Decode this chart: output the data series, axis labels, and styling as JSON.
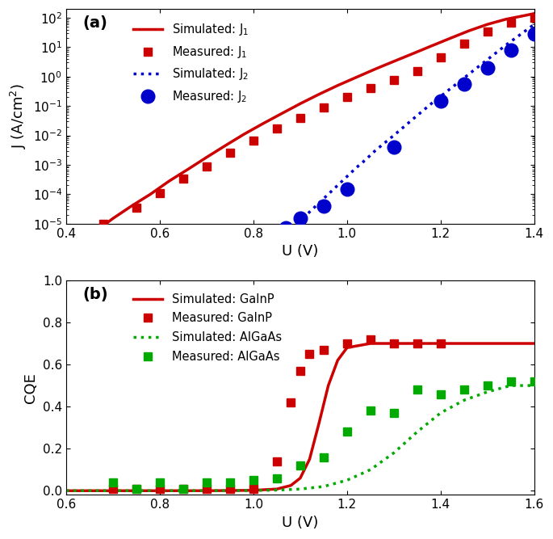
{
  "panel_a": {
    "title": "(a)",
    "xlabel": "U (V)",
    "ylabel": "J (A/cm²)",
    "xlim": [
      0.4,
      1.4
    ],
    "ylim": [
      1e-05,
      200
    ],
    "J1_sim_x": [
      0.43,
      0.46,
      0.5,
      0.54,
      0.58,
      0.62,
      0.66,
      0.7,
      0.74,
      0.78,
      0.82,
      0.86,
      0.9,
      0.94,
      0.98,
      1.02,
      1.06,
      1.1,
      1.14,
      1.18,
      1.22,
      1.26,
      1.3,
      1.34,
      1.38,
      1.4
    ],
    "J1_sim_y": [
      2e-06,
      5e-06,
      1.5e-05,
      4e-05,
      0.0001,
      0.00028,
      0.0007,
      0.0018,
      0.0045,
      0.011,
      0.025,
      0.055,
      0.12,
      0.25,
      0.5,
      0.95,
      1.8,
      3.3,
      6.0,
      11,
      20,
      36,
      60,
      90,
      120,
      140
    ],
    "J1_meas_x": [
      0.48,
      0.55,
      0.6,
      0.65,
      0.7,
      0.75,
      0.8,
      0.85,
      0.9,
      0.95,
      1.0,
      1.05,
      1.1,
      1.15,
      1.2,
      1.25,
      1.3,
      1.35,
      1.4
    ],
    "J1_meas_y": [
      1e-05,
      3.5e-05,
      0.00011,
      0.00035,
      0.0009,
      0.0025,
      0.0065,
      0.017,
      0.04,
      0.09,
      0.2,
      0.4,
      0.75,
      1.5,
      4.5,
      13,
      35,
      70,
      100
    ],
    "J2_sim_x": [
      0.86,
      0.88,
      0.9,
      0.92,
      0.94,
      0.96,
      0.98,
      1.0,
      1.02,
      1.04,
      1.06,
      1.08,
      1.1,
      1.14,
      1.18,
      1.22,
      1.26,
      1.3,
      1.34,
      1.38,
      1.4
    ],
    "J2_sim_y": [
      3e-06,
      6e-06,
      1.2e-05,
      2.5e-05,
      5e-05,
      0.0001,
      0.0002,
      0.0004,
      0.0008,
      0.0015,
      0.003,
      0.0055,
      0.01,
      0.035,
      0.12,
      0.38,
      1.2,
      3.8,
      12,
      35,
      60
    ],
    "J2_meas_x": [
      0.87,
      0.9,
      0.95,
      1.0,
      1.1,
      1.2,
      1.25,
      1.3,
      1.35,
      1.4
    ],
    "J2_meas_y": [
      7e-06,
      1.5e-05,
      4e-05,
      0.00015,
      0.004,
      0.15,
      0.55,
      2.0,
      8.0,
      28
    ],
    "color_J1": "#cc0000",
    "color_J2": "#0000cc",
    "lw": 2.5
  },
  "panel_b": {
    "title": "(b)",
    "xlabel": "U (V)",
    "ylabel": "CQE",
    "xlim": [
      0.6,
      1.6
    ],
    "ylim": [
      -0.02,
      1.0
    ],
    "GaInP_sim_x": [
      0.6,
      0.7,
      0.8,
      0.9,
      1.0,
      1.05,
      1.08,
      1.1,
      1.12,
      1.14,
      1.16,
      1.18,
      1.2,
      1.25,
      1.3,
      1.35,
      1.4,
      1.5,
      1.6
    ],
    "GaInP_sim_y": [
      0.0,
      0.0,
      0.0,
      0.0,
      0.002,
      0.008,
      0.025,
      0.06,
      0.15,
      0.32,
      0.5,
      0.62,
      0.68,
      0.7,
      0.7,
      0.7,
      0.7,
      0.7,
      0.7
    ],
    "GaInP_meas_x": [
      0.7,
      0.75,
      0.8,
      0.85,
      0.9,
      0.95,
      1.0,
      1.05,
      1.08,
      1.1,
      1.12,
      1.15,
      1.2,
      1.25,
      1.3,
      1.35,
      1.4
    ],
    "GaInP_meas_y": [
      0.01,
      0.01,
      0.01,
      0.01,
      0.01,
      0.01,
      0.01,
      0.14,
      0.42,
      0.57,
      0.65,
      0.67,
      0.7,
      0.72,
      0.7,
      0.7,
      0.7
    ],
    "AlGaAs_sim_x": [
      0.6,
      0.7,
      0.8,
      0.9,
      1.0,
      1.05,
      1.1,
      1.15,
      1.2,
      1.25,
      1.3,
      1.35,
      1.4,
      1.45,
      1.5,
      1.55,
      1.6
    ],
    "AlGaAs_sim_y": [
      0.0,
      0.0,
      0.0,
      0.0,
      0.001,
      0.003,
      0.008,
      0.02,
      0.05,
      0.1,
      0.18,
      0.28,
      0.37,
      0.43,
      0.47,
      0.5,
      0.5
    ],
    "AlGaAs_meas_x": [
      0.7,
      0.75,
      0.8,
      0.85,
      0.9,
      0.95,
      1.0,
      1.05,
      1.1,
      1.15,
      1.2,
      1.25,
      1.3,
      1.35,
      1.4,
      1.45,
      1.5,
      1.55,
      1.6
    ],
    "AlGaAs_meas_y": [
      0.04,
      0.01,
      0.04,
      0.01,
      0.04,
      0.04,
      0.05,
      0.06,
      0.12,
      0.16,
      0.28,
      0.38,
      0.37,
      0.48,
      0.46,
      0.48,
      0.5,
      0.52,
      0.52
    ],
    "color_GaInP": "#cc0000",
    "color_AlGaAs": "#00aa00",
    "lw": 2.5
  }
}
